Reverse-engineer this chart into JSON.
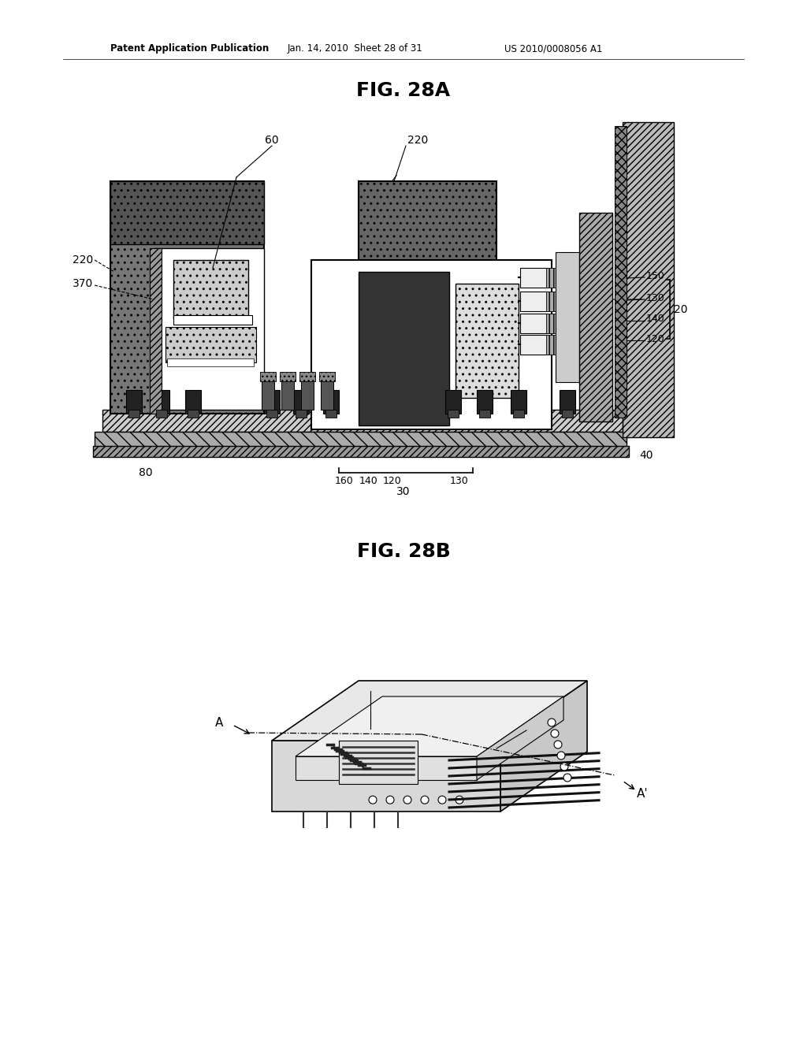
{
  "header_left": "Patent Application Publication",
  "header_mid": "Jan. 14, 2010  Sheet 28 of 31",
  "header_right": "US 2010/0008056 A1",
  "fig_title_a": "FIG. 28A",
  "fig_title_b": "FIG. 28B",
  "background_color": "#ffffff"
}
